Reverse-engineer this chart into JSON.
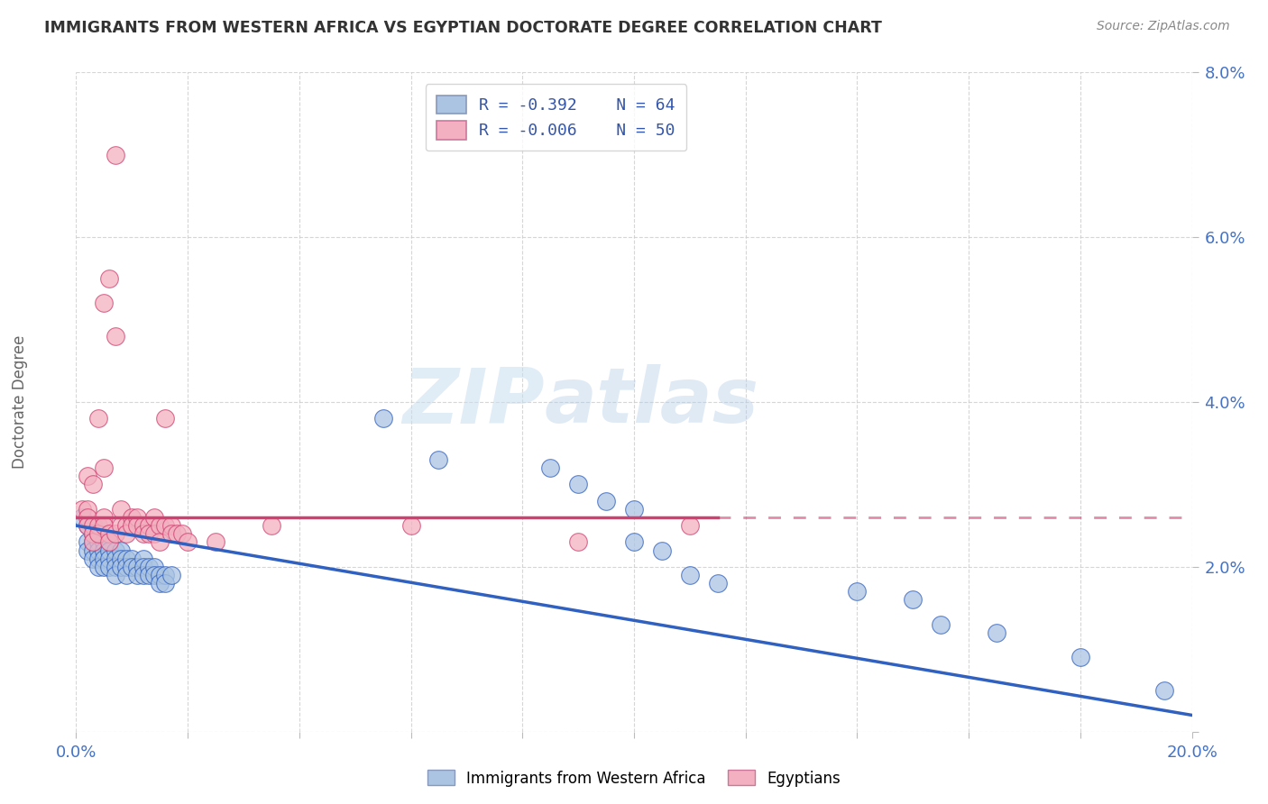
{
  "title": "IMMIGRANTS FROM WESTERN AFRICA VS EGYPTIAN DOCTORATE DEGREE CORRELATION CHART",
  "source": "Source: ZipAtlas.com",
  "ylabel": "Doctorate Degree",
  "xlim": [
    0.0,
    0.2
  ],
  "ylim": [
    0.0,
    0.08
  ],
  "xticks": [
    0.0,
    0.02,
    0.04,
    0.06,
    0.08,
    0.1,
    0.12,
    0.14,
    0.16,
    0.18,
    0.2
  ],
  "yticks": [
    0.0,
    0.02,
    0.04,
    0.06,
    0.08
  ],
  "xtick_labels": [
    "0.0%",
    "",
    "",
    "",
    "",
    "",
    "",
    "",
    "",
    "",
    "20.0%"
  ],
  "ytick_labels": [
    "",
    "2.0%",
    "4.0%",
    "6.0%",
    "8.0%"
  ],
  "legend_r1": "R = -0.392",
  "legend_n1": "N = 64",
  "legend_r2": "R = -0.006",
  "legend_n2": "N = 50",
  "color_blue": "#aac4e2",
  "color_pink": "#f2b0c0",
  "line_color_blue": "#3060c0",
  "line_color_pink": "#d04070",
  "watermark_zip": "ZIP",
  "watermark_atlas": "atlas",
  "blue_dots": [
    [
      0.001,
      0.026
    ],
    [
      0.002,
      0.025
    ],
    [
      0.002,
      0.023
    ],
    [
      0.002,
      0.022
    ],
    [
      0.003,
      0.025
    ],
    [
      0.003,
      0.024
    ],
    [
      0.003,
      0.023
    ],
    [
      0.003,
      0.022
    ],
    [
      0.003,
      0.021
    ],
    [
      0.004,
      0.024
    ],
    [
      0.004,
      0.023
    ],
    [
      0.004,
      0.022
    ],
    [
      0.004,
      0.021
    ],
    [
      0.004,
      0.02
    ],
    [
      0.005,
      0.023
    ],
    [
      0.005,
      0.022
    ],
    [
      0.005,
      0.021
    ],
    [
      0.005,
      0.02
    ],
    [
      0.006,
      0.023
    ],
    [
      0.006,
      0.022
    ],
    [
      0.006,
      0.021
    ],
    [
      0.006,
      0.02
    ],
    [
      0.007,
      0.022
    ],
    [
      0.007,
      0.021
    ],
    [
      0.007,
      0.02
    ],
    [
      0.007,
      0.019
    ],
    [
      0.008,
      0.022
    ],
    [
      0.008,
      0.021
    ],
    [
      0.008,
      0.02
    ],
    [
      0.009,
      0.021
    ],
    [
      0.009,
      0.02
    ],
    [
      0.009,
      0.019
    ],
    [
      0.01,
      0.021
    ],
    [
      0.01,
      0.02
    ],
    [
      0.011,
      0.02
    ],
    [
      0.011,
      0.019
    ],
    [
      0.012,
      0.021
    ],
    [
      0.012,
      0.02
    ],
    [
      0.012,
      0.019
    ],
    [
      0.013,
      0.02
    ],
    [
      0.013,
      0.019
    ],
    [
      0.014,
      0.02
    ],
    [
      0.014,
      0.019
    ],
    [
      0.015,
      0.019
    ],
    [
      0.015,
      0.018
    ],
    [
      0.016,
      0.019
    ],
    [
      0.016,
      0.018
    ],
    [
      0.017,
      0.019
    ],
    [
      0.055,
      0.038
    ],
    [
      0.065,
      0.033
    ],
    [
      0.085,
      0.032
    ],
    [
      0.09,
      0.03
    ],
    [
      0.095,
      0.028
    ],
    [
      0.1,
      0.027
    ],
    [
      0.1,
      0.023
    ],
    [
      0.105,
      0.022
    ],
    [
      0.11,
      0.019
    ],
    [
      0.115,
      0.018
    ],
    [
      0.14,
      0.017
    ],
    [
      0.15,
      0.016
    ],
    [
      0.155,
      0.013
    ],
    [
      0.165,
      0.012
    ],
    [
      0.18,
      0.009
    ],
    [
      0.195,
      0.005
    ]
  ],
  "pink_dots": [
    [
      0.001,
      0.027
    ],
    [
      0.002,
      0.027
    ],
    [
      0.002,
      0.026
    ],
    [
      0.002,
      0.025
    ],
    [
      0.002,
      0.031
    ],
    [
      0.003,
      0.025
    ],
    [
      0.003,
      0.024
    ],
    [
      0.003,
      0.023
    ],
    [
      0.003,
      0.03
    ],
    [
      0.004,
      0.025
    ],
    [
      0.004,
      0.024
    ],
    [
      0.004,
      0.038
    ],
    [
      0.005,
      0.026
    ],
    [
      0.005,
      0.025
    ],
    [
      0.005,
      0.032
    ],
    [
      0.005,
      0.052
    ],
    [
      0.006,
      0.024
    ],
    [
      0.006,
      0.023
    ],
    [
      0.006,
      0.055
    ],
    [
      0.007,
      0.024
    ],
    [
      0.007,
      0.07
    ],
    [
      0.007,
      0.048
    ],
    [
      0.008,
      0.027
    ],
    [
      0.008,
      0.025
    ],
    [
      0.009,
      0.025
    ],
    [
      0.009,
      0.024
    ],
    [
      0.01,
      0.026
    ],
    [
      0.01,
      0.025
    ],
    [
      0.011,
      0.026
    ],
    [
      0.011,
      0.025
    ],
    [
      0.012,
      0.025
    ],
    [
      0.012,
      0.024
    ],
    [
      0.013,
      0.025
    ],
    [
      0.013,
      0.024
    ],
    [
      0.014,
      0.026
    ],
    [
      0.014,
      0.024
    ],
    [
      0.015,
      0.025
    ],
    [
      0.015,
      0.023
    ],
    [
      0.016,
      0.025
    ],
    [
      0.016,
      0.038
    ],
    [
      0.017,
      0.025
    ],
    [
      0.017,
      0.024
    ],
    [
      0.018,
      0.024
    ],
    [
      0.019,
      0.024
    ],
    [
      0.02,
      0.023
    ],
    [
      0.025,
      0.023
    ],
    [
      0.035,
      0.025
    ],
    [
      0.06,
      0.025
    ],
    [
      0.09,
      0.023
    ],
    [
      0.11,
      0.025
    ]
  ],
  "pink_trendline_solid_end": 0.115,
  "blue_trendline_y_start": 0.025,
  "blue_trendline_y_end": 0.002,
  "pink_trendline_y": 0.026
}
